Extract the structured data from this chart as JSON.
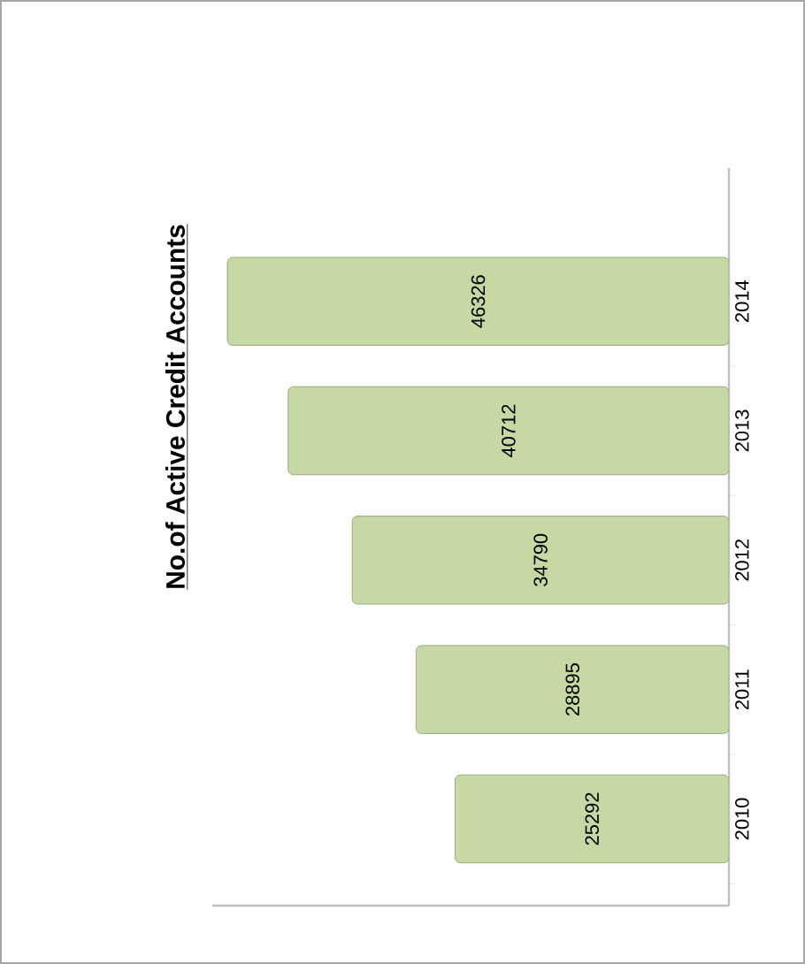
{
  "chart_data": {
    "type": "bar",
    "title": "No.of Active Credit Accounts",
    "orientation": "horizontal",
    "categories": [
      "2014",
      "2013",
      "2012",
      "2011",
      "2010"
    ],
    "values": [
      46326,
      40712,
      34790,
      28895,
      25292
    ],
    "color": "#c6d9a4",
    "data_labels": true
  }
}
